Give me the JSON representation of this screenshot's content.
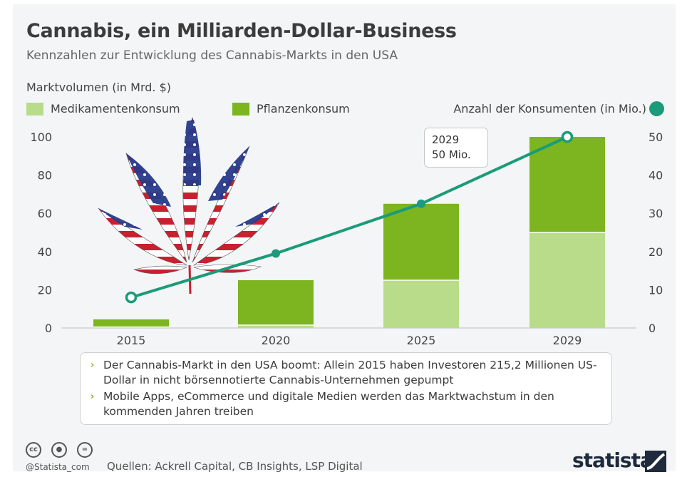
{
  "header": {
    "title": "Cannabis, ein Milliarden-Dollar-Business",
    "subtitle": "Kennzahlen zur Entwicklung des Cannabis-Markts in den USA"
  },
  "chart_data": {
    "type": "bar",
    "title": "Cannabis, ein Milliarden-Dollar-Business",
    "subtitle": "Kennzahlen zur Entwicklung des Cannabis-Markts in den USA",
    "ylabel": "Marktvolumen (in Mrd. $)",
    "y2label": "Anzahl der Konsumenten (in Mio.)",
    "categories": [
      "2015",
      "2020",
      "2025",
      "2029"
    ],
    "series": [
      {
        "name": "Medikamentenkonsum",
        "kind": "bar",
        "stack": "main",
        "axis": "left",
        "color": "#b8dc8a",
        "values": [
          0.5,
          1.5,
          25,
          50
        ]
      },
      {
        "name": "Pflanzenkonsum",
        "kind": "bar",
        "stack": "main",
        "axis": "left",
        "color": "#7cb51f",
        "values": [
          4,
          23.5,
          40,
          50
        ]
      },
      {
        "name": "Anzahl der Konsumenten (in Mio.)",
        "kind": "line",
        "axis": "right",
        "color": "#1a9b7a",
        "values": [
          8,
          19.5,
          32.5,
          50
        ]
      }
    ],
    "ylim": [
      0,
      100
    ],
    "y2lim": [
      0,
      50
    ],
    "yticks": [
      0,
      20,
      40,
      60,
      80,
      100
    ],
    "y2ticks": [
      0,
      10,
      20,
      30,
      40,
      50
    ],
    "grid": false,
    "legend": "top",
    "annotations": [
      {
        "category": "2029",
        "series": "Anzahl der Konsumenten (in Mio.)",
        "lines": [
          "2029",
          "50 Mio."
        ]
      }
    ]
  },
  "legend": {
    "item1": "Medikamentenkonsum",
    "item2": "Pflanzenkonsum",
    "item3": "Anzahl der Konsumenten (in Mio.)"
  },
  "notes": [
    "Der Cannabis-Markt in den USA boomt: Allein 2015 haben Investoren 215,2 Millionen US-Dollar in nicht börsennotierte Cannabis-Unternehmen gepumpt",
    "Mobile Apps, eCommerce und digitale Medien werden das Marktwachstum in den kommenden Jahren treiben"
  ],
  "footer": {
    "handle": "@Statista_com",
    "sources": "Quellen: Ackrell Capital, CB Insights, LSP Digital",
    "brand": "statista",
    "cc_icons": [
      "creative-commons-icon",
      "attribution-icon",
      "no-derivatives-icon"
    ]
  },
  "colors": {
    "medical": "#b8dc8a",
    "plant": "#7cb51f",
    "line": "#1a9b7a",
    "flag_red": "#c8202f",
    "flag_blue": "#283a8a"
  }
}
